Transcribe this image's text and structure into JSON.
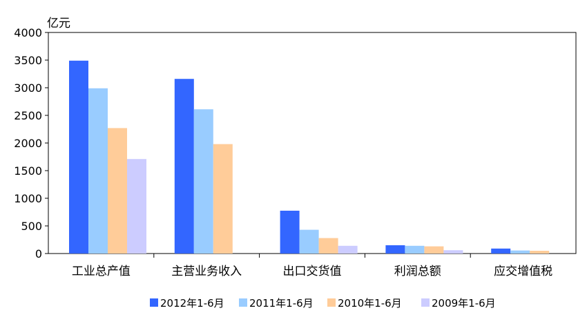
{
  "chart_data": {
    "type": "bar",
    "unit_label": "亿元",
    "categories": [
      "工业总产值",
      "主营业务收入",
      "出口交货值",
      "利润总额",
      "应交增值税"
    ],
    "series": [
      {
        "name": "2012年1-6月",
        "color": "#3366ff",
        "values": [
          3490,
          3160,
          775,
          150,
          90
        ]
      },
      {
        "name": "2011年1-6月",
        "color": "#99ccff",
        "values": [
          2990,
          2610,
          430,
          140,
          55
        ]
      },
      {
        "name": "2010年1-6月",
        "color": "#ffcc99",
        "values": [
          2270,
          1980,
          280,
          130,
          50
        ]
      },
      {
        "name": "2009年1-6月",
        "color": "#ccccff",
        "values": [
          1710,
          null,
          140,
          60,
          null
        ]
      }
    ],
    "ylim": [
      0,
      4000
    ],
    "yticks": [
      0,
      500,
      1000,
      1500,
      2000,
      2500,
      3000,
      3500,
      4000
    ],
    "grid": false,
    "legend_position": "bottom"
  }
}
